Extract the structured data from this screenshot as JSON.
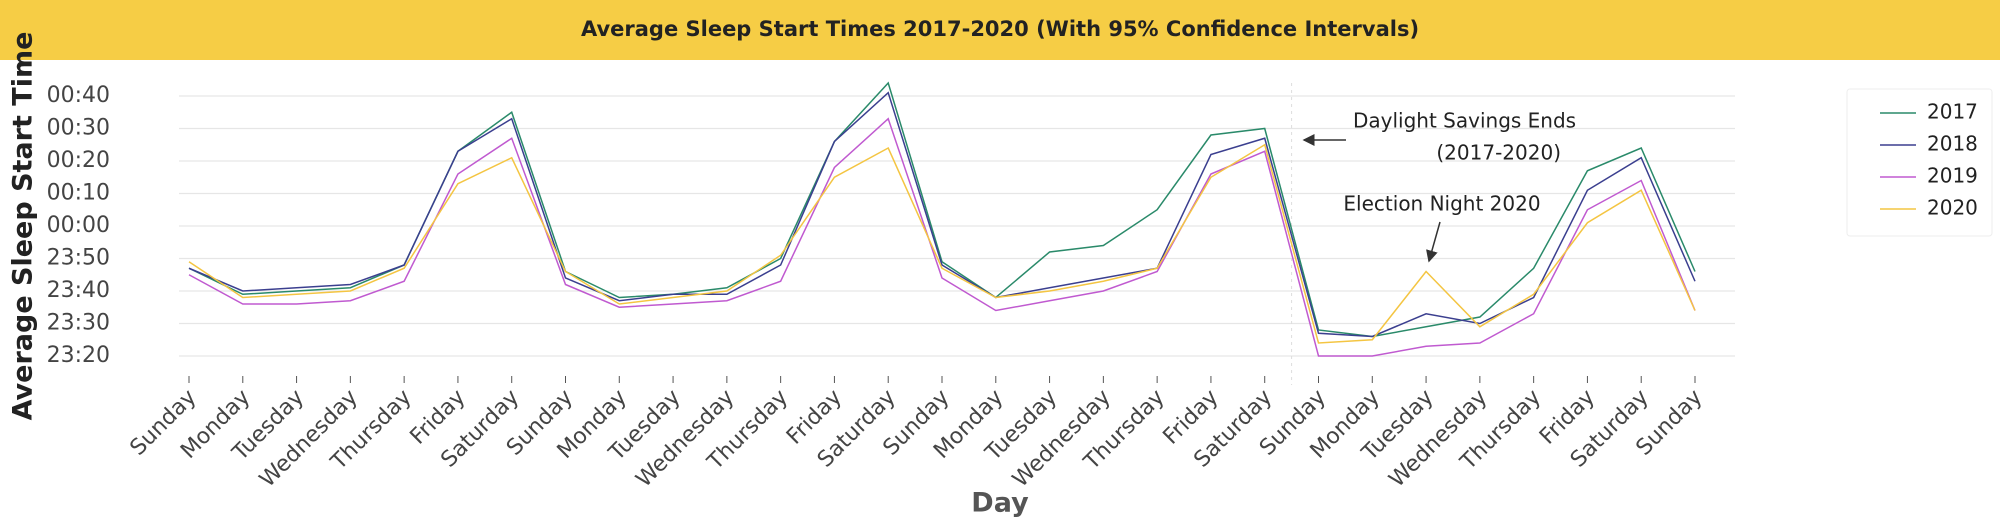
{
  "chart_data": {
    "type": "line",
    "title": "Average Sleep Start Times 2017-2020 (With 95% Confidence Intervals)",
    "x_label": "Day",
    "y_label": "Average Sleep Start Time",
    "categories": [
      "Sunday",
      "Monday",
      "Tuesday",
      "Wednesday",
      "Thursday",
      "Friday",
      "Saturday",
      "Sunday",
      "Monday",
      "Tuesday",
      "Wednesday",
      "Thursday",
      "Friday",
      "Saturday",
      "Sunday",
      "Monday",
      "Tuesday",
      "Wednesday",
      "Thursday",
      "Friday",
      "Saturday",
      "Sunday",
      "Monday",
      "Tuesday",
      "Wednesday",
      "Thursday",
      "Friday",
      "Saturday",
      "Sunday"
    ],
    "series": [
      {
        "name": "2017",
        "color": "#2a8a6a",
        "values": [
          -13,
          -21,
          -20,
          -19,
          -12,
          23,
          35,
          -14,
          -22,
          -21,
          -19,
          -10,
          26,
          44,
          -11,
          -22,
          -8,
          -6,
          5,
          28,
          30,
          -32,
          -34,
          -31,
          -28,
          -13,
          17,
          24,
          -14
        ]
      },
      {
        "name": "2018",
        "color": "#3b3f8f",
        "values": [
          -13,
          -20,
          -19,
          -18,
          -12,
          23,
          33,
          -16,
          -23,
          -21,
          -21,
          -12,
          26,
          41,
          -12,
          -22,
          -19,
          -16,
          -13,
          22,
          27,
          -33,
          -34,
          -27,
          -30,
          -22,
          11,
          21,
          -17
        ]
      },
      {
        "name": "2019",
        "color": "#c05ad0",
        "values": [
          -15,
          -24,
          -24,
          -23,
          -17,
          16,
          27,
          -18,
          -25,
          -24,
          -23,
          -17,
          18,
          33,
          -16,
          -26,
          -23,
          -20,
          -14,
          16,
          23,
          -40,
          -40,
          -37,
          -36,
          -27,
          5,
          14,
          -26
        ]
      },
      {
        "name": "2020",
        "color": "#f4c542",
        "values": [
          -11,
          -22,
          -21,
          -20,
          -13,
          13,
          21,
          -14,
          -24,
          -22,
          -20,
          -9,
          15,
          24,
          -13,
          -22,
          -20,
          -17,
          -13,
          15,
          25,
          -36,
          -35,
          -14,
          -31,
          -21,
          1,
          11,
          -26
        ]
      }
    ],
    "ylim": [
      -44,
      44
    ],
    "yticks": [
      {
        "value": -40,
        "label": "23:20"
      },
      {
        "value": -30,
        "label": "23:30"
      },
      {
        "value": -20,
        "label": "23:40"
      },
      {
        "value": -10,
        "label": "23:50"
      },
      {
        "value": 0,
        "label": "00:00"
      },
      {
        "value": 10,
        "label": "00:10"
      },
      {
        "value": 20,
        "label": "00:20"
      },
      {
        "value": 30,
        "label": "00:30"
      },
      {
        "value": 40,
        "label": "00:40"
      }
    ],
    "grid": true,
    "legend": "upper right",
    "annotations": [
      "Daylight Savings Ends",
      "(2017-2020)",
      "Election Night 2020"
    ]
  }
}
